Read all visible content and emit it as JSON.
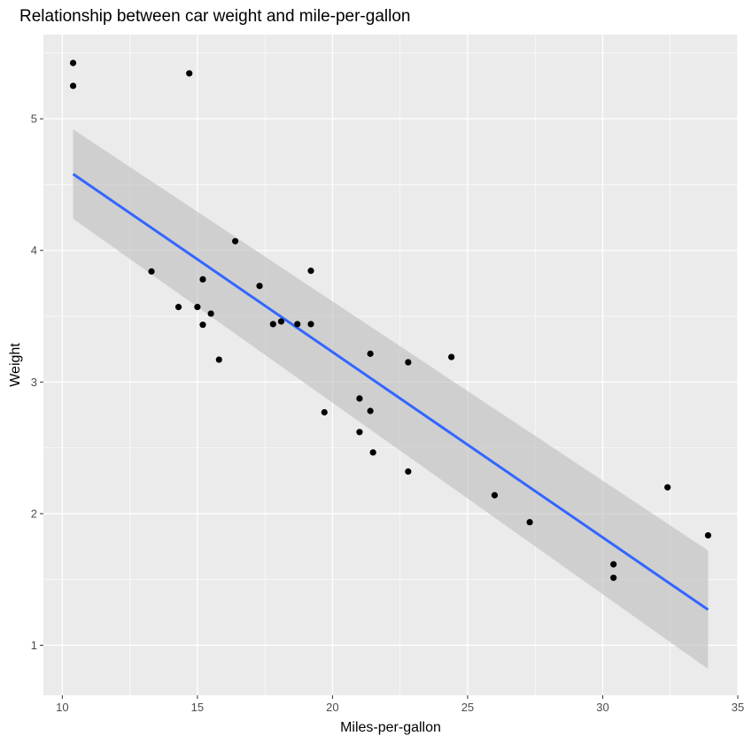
{
  "chart_data": {
    "type": "scatter",
    "title": "Relationship between car weight and mile-per-gallon",
    "xlabel": "Miles-per-gallon",
    "ylabel": "Weight",
    "xlim": [
      9.3,
      35.0
    ],
    "ylim": [
      0.62,
      5.64
    ],
    "x_ticks": [
      10,
      15,
      20,
      25,
      30,
      35
    ],
    "y_ticks": [
      1,
      2,
      3,
      4,
      5
    ],
    "grid": true,
    "legend": "none",
    "points": {
      "x": [
        21.0,
        21.0,
        22.8,
        21.4,
        18.7,
        18.1,
        14.3,
        24.4,
        22.8,
        19.2,
        17.8,
        16.4,
        17.3,
        15.2,
        10.4,
        10.4,
        14.7,
        32.4,
        30.4,
        33.9,
        21.5,
        15.5,
        15.2,
        13.3,
        19.2,
        27.3,
        26.0,
        30.4,
        15.8,
        19.7,
        15.0,
        21.4
      ],
      "y": [
        2.62,
        2.875,
        2.32,
        3.215,
        3.44,
        3.46,
        3.57,
        3.19,
        3.15,
        3.44,
        3.44,
        4.07,
        3.73,
        3.78,
        5.25,
        5.424,
        5.345,
        2.2,
        1.615,
        1.835,
        2.465,
        3.52,
        3.435,
        3.84,
        3.845,
        1.935,
        2.14,
        1.513,
        3.17,
        2.77,
        3.57,
        2.78
      ]
    },
    "fit": {
      "x": [
        10.4,
        33.9
      ],
      "y": [
        4.58,
        1.27
      ],
      "ci_lower": [
        4.24,
        0.82
      ],
      "ci_upper": [
        4.92,
        1.72
      ]
    },
    "colors": {
      "panel": "#ebebeb",
      "grid_major": "#ffffff",
      "point": "#000000",
      "fit_line": "#3366ff",
      "ci_band": "#bebebe"
    }
  }
}
